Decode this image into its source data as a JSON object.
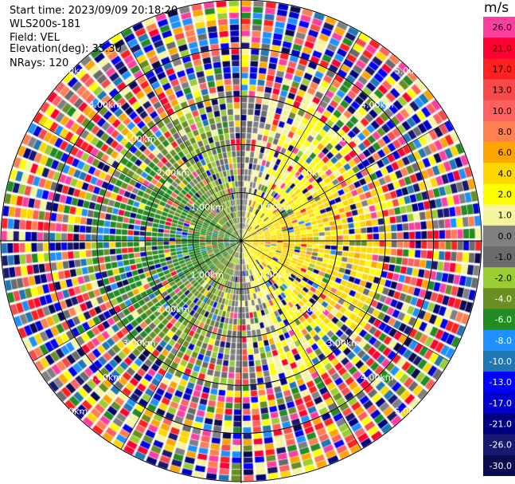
{
  "header": {
    "start_time": "Start time: 2023/09/09 20:18:20",
    "site": "WLS200s-181",
    "field": "Field: VEL",
    "elevation": "Elevation(deg): 35.30",
    "nrays": "NRays: 120"
  },
  "colorbar": {
    "unit": "m/s",
    "levels": [
      {
        "label": "26.0",
        "color": "#ff3fa0"
      },
      {
        "label": "21.0",
        "color": "#ff0030"
      },
      {
        "label": "17.0",
        "color": "#ff2020"
      },
      {
        "label": "13.0",
        "color": "#f84a4a"
      },
      {
        "label": "10.0",
        "color": "#ff6060"
      },
      {
        "label": "8.0",
        "color": "#ff7f50"
      },
      {
        "label": "6.0",
        "color": "#ffa500"
      },
      {
        "label": "4.0",
        "color": "#ffd700"
      },
      {
        "label": "2.0",
        "color": "#ffff00"
      },
      {
        "label": "1.0",
        "color": "#f5f5a0"
      },
      {
        "label": "0.0",
        "color": "#808080"
      },
      {
        "label": "-1.0",
        "color": "#6b6b6b"
      },
      {
        "label": "-2.0",
        "color": "#9acd32"
      },
      {
        "label": "-4.0",
        "color": "#6b8e23"
      },
      {
        "label": "-6.0",
        "color": "#228b22"
      },
      {
        "label": "-8.0",
        "color": "#1e90ff"
      },
      {
        "label": "-10.0",
        "color": "#1f77b4"
      },
      {
        "label": "-13.0",
        "color": "#0000ff"
      },
      {
        "label": "-17.0",
        "color": "#0000cd"
      },
      {
        "label": "-21.0",
        "color": "#000080"
      },
      {
        "label": "-26.0",
        "color": "#191970"
      },
      {
        "label": "-30.0",
        "color": "#0a0a50"
      }
    ]
  },
  "chart_data": {
    "type": "heatmap",
    "field": "VEL",
    "nrays": 120,
    "elevation_deg": 35.3,
    "range_rings_km": [
      1.0,
      2.0,
      3.0,
      4.0,
      5.0
    ],
    "ring_labels": [
      "1.00km",
      "2.00km",
      "3.00km",
      "4.00km",
      "5.00km"
    ],
    "max_range_km": 5.0,
    "range_gates": 40,
    "velocity_pattern": {
      "approx_mean_flow_toward_azimuth_deg": 90,
      "mean_speed_ms": 5.0,
      "note_near_range": "coherent field within ~3 km",
      "note_far_range": "noisy random values beyond ~3 km"
    }
  }
}
